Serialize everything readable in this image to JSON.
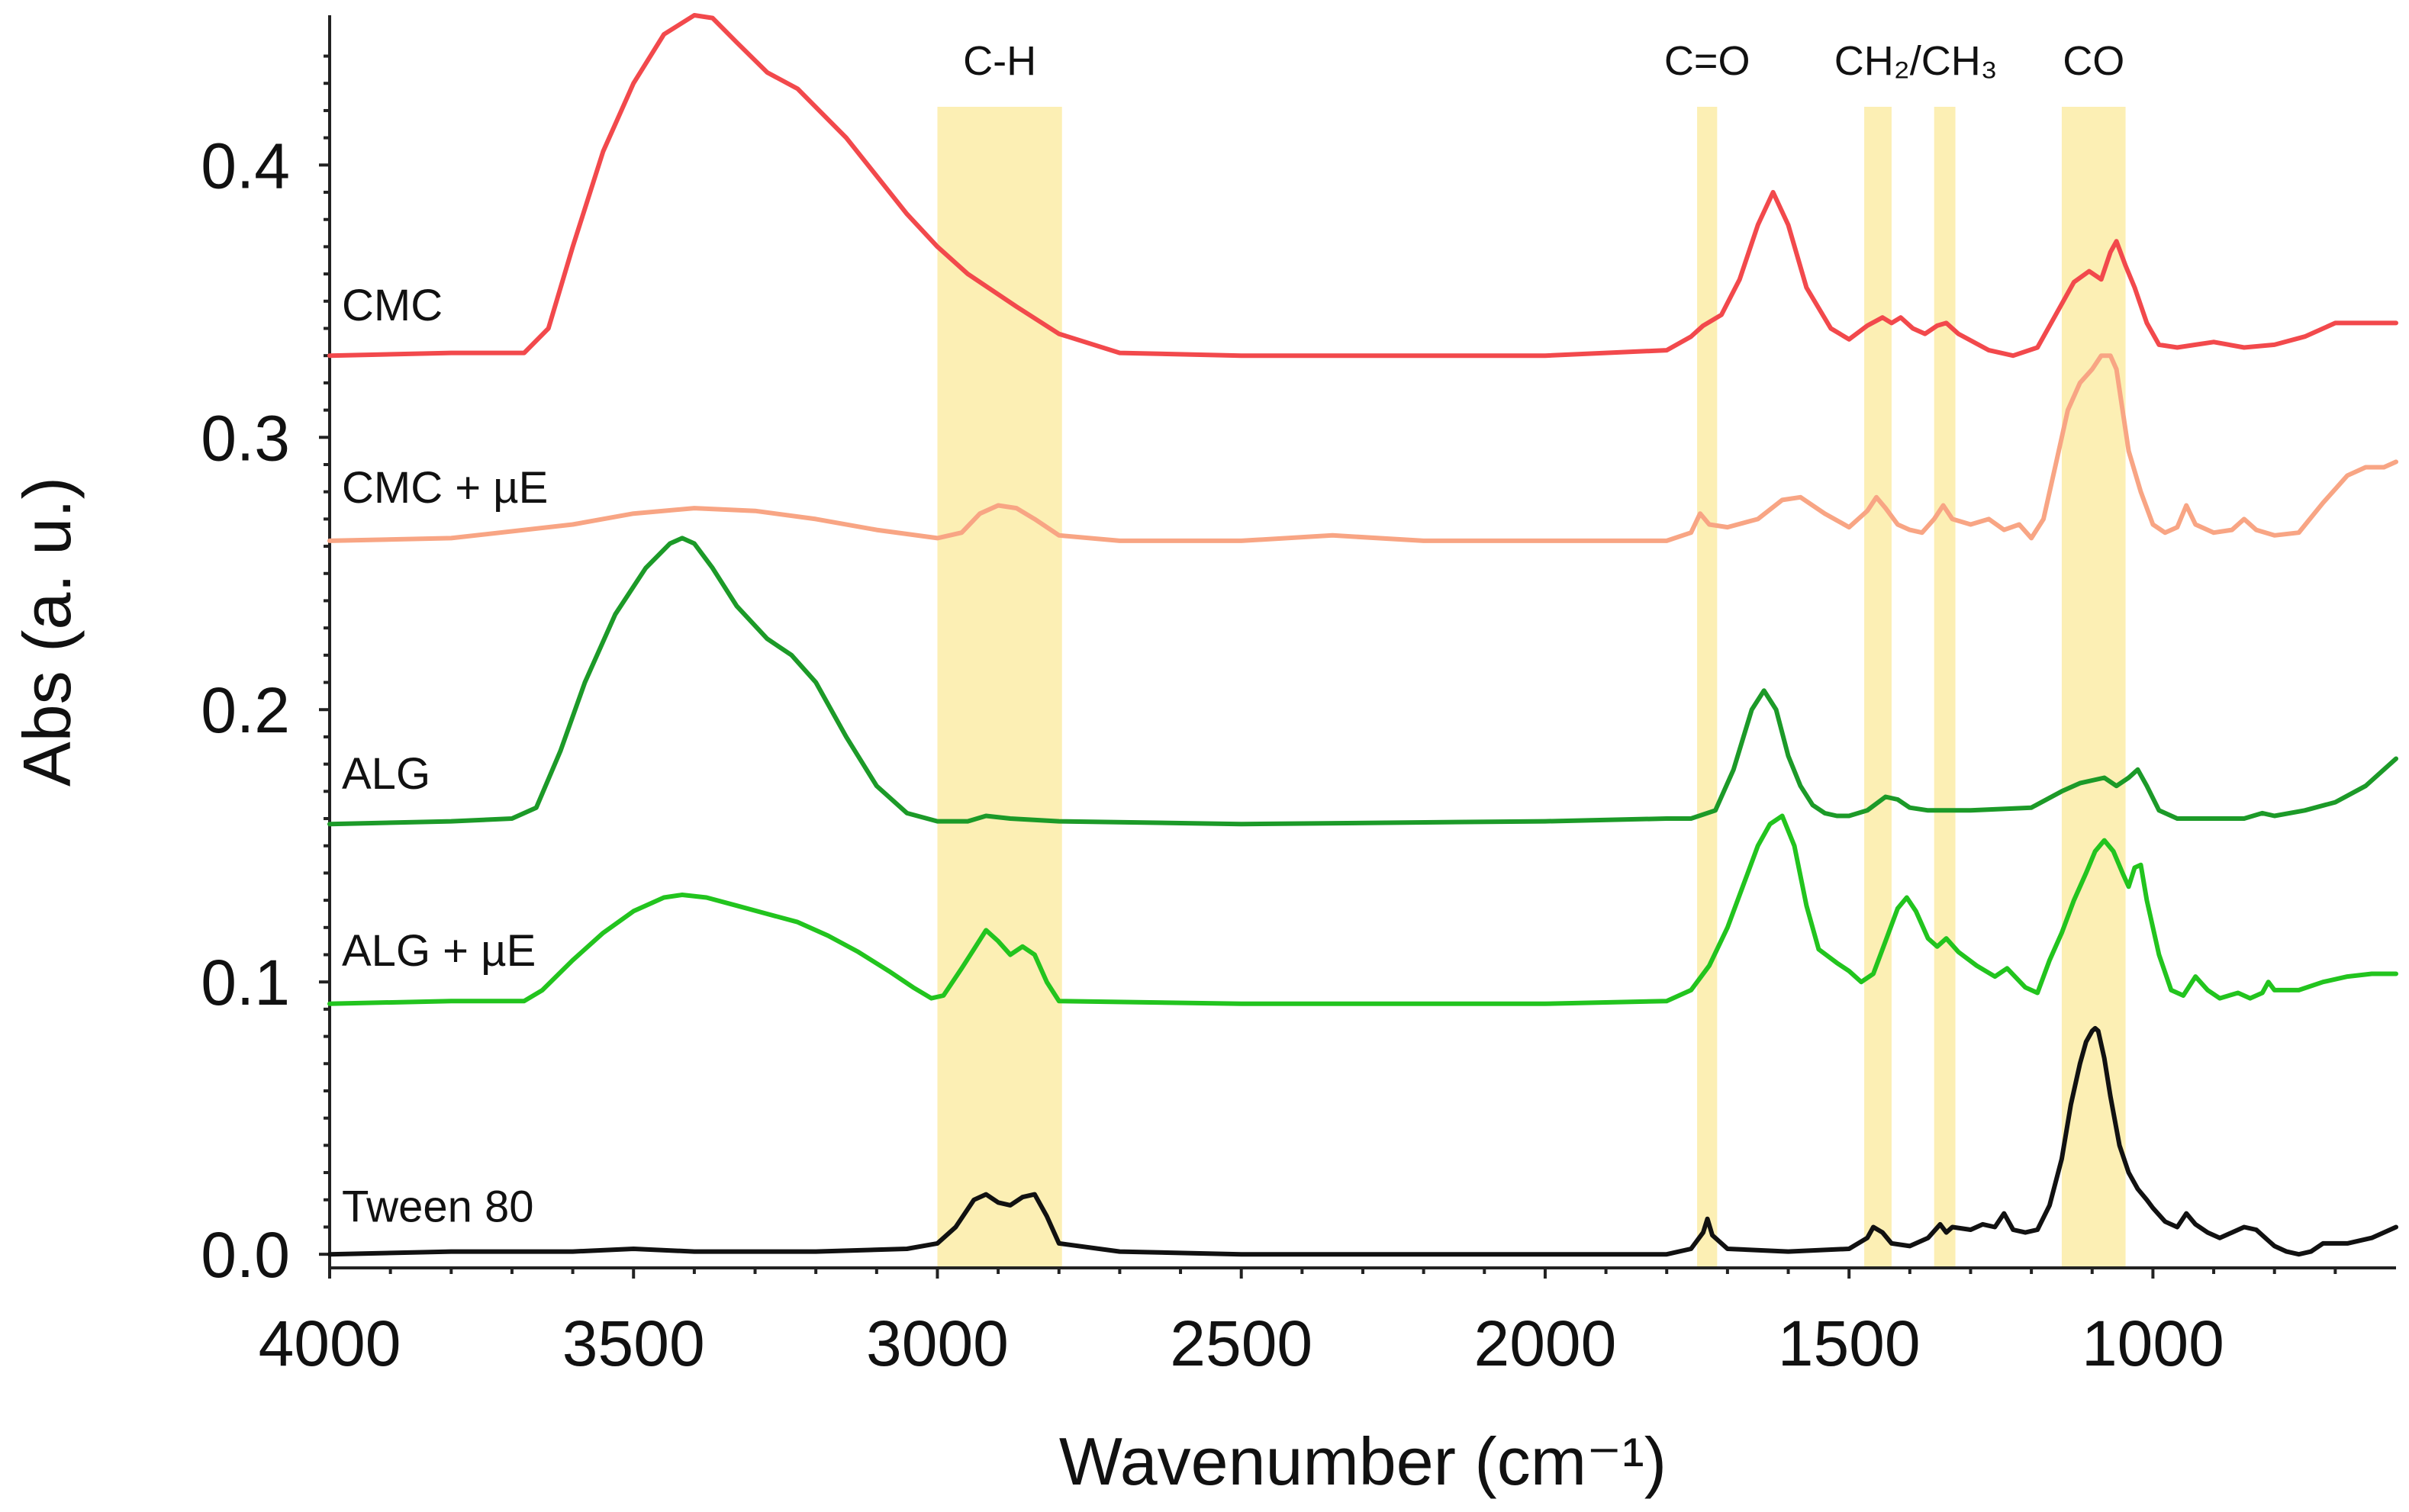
{
  "chart_data": {
    "type": "line",
    "title": "",
    "xlabel": "Wavenumber (cm⁻¹)",
    "ylabel": "Abs (a. u.)",
    "xlim": [
      4000,
      600
    ],
    "ylim": [
      -0.005,
      0.455
    ],
    "x_reversed": true,
    "grid": false,
    "x_ticks": [
      {
        "value": 4000,
        "label": "4000"
      },
      {
        "value": 3500,
        "label": "3500"
      },
      {
        "value": 3000,
        "label": "3000"
      },
      {
        "value": 2500,
        "label": "2500"
      },
      {
        "value": 2000,
        "label": "2000"
      },
      {
        "value": 1500,
        "label": "1500"
      },
      {
        "value": 1000,
        "label": "1000"
      }
    ],
    "y_ticks": [
      {
        "value": 0.0,
        "label": "0.0"
      },
      {
        "value": 0.1,
        "label": "0.1"
      },
      {
        "value": 0.2,
        "label": "0.2"
      },
      {
        "value": 0.3,
        "label": "0.3"
      },
      {
        "value": 0.4,
        "label": "0.4"
      }
    ],
    "bands": [
      {
        "name": "C-H",
        "from": 3000,
        "to": 2795,
        "label": "C-H"
      },
      {
        "name": "C=O",
        "from": 1750,
        "to": 1717,
        "label": "C=O"
      },
      {
        "name": "CH2/CH3",
        "from": 1475,
        "to": 1430,
        "label": "CH₂/CH₃"
      },
      {
        "name": "CH2/CH3-b",
        "from": 1360,
        "to": 1325,
        "label": ""
      },
      {
        "name": "CO",
        "from": 1150,
        "to": 1045,
        "label": "CO"
      }
    ],
    "band_color": "#fcefb4",
    "series": [
      {
        "name": "CMC",
        "label": "CMC",
        "color": "#f2494c",
        "x": [
          4000,
          3800,
          3680,
          3640,
          3600,
          3550,
          3500,
          3450,
          3400,
          3370,
          3330,
          3280,
          3230,
          3150,
          3050,
          3000,
          2950,
          2870,
          2800,
          2700,
          2500,
          2300,
          2000,
          1800,
          1760,
          1740,
          1710,
          1680,
          1650,
          1625,
          1600,
          1570,
          1530,
          1500,
          1470,
          1445,
          1430,
          1415,
          1395,
          1375,
          1355,
          1340,
          1320,
          1270,
          1230,
          1190,
          1160,
          1130,
          1105,
          1085,
          1070,
          1060,
          1045,
          1030,
          1010,
          990,
          960,
          930,
          900,
          850,
          800,
          750,
          700,
          650,
          600
        ],
        "y": [
          0.33,
          0.331,
          0.331,
          0.34,
          0.37,
          0.405,
          0.43,
          0.448,
          0.455,
          0.454,
          0.445,
          0.434,
          0.428,
          0.41,
          0.382,
          0.37,
          0.36,
          0.348,
          0.338,
          0.331,
          0.33,
          0.33,
          0.33,
          0.332,
          0.337,
          0.341,
          0.345,
          0.358,
          0.378,
          0.39,
          0.378,
          0.355,
          0.34,
          0.336,
          0.341,
          0.344,
          0.342,
          0.344,
          0.34,
          0.338,
          0.341,
          0.342,
          0.338,
          0.332,
          0.33,
          0.333,
          0.345,
          0.357,
          0.361,
          0.358,
          0.368,
          0.372,
          0.363,
          0.355,
          0.342,
          0.334,
          0.333,
          0.334,
          0.335,
          0.333,
          0.334,
          0.337,
          0.342,
          0.342,
          0.342
        ]
      },
      {
        "name": "CMC + µE",
        "label": "CMC + µE",
        "color": "#f8a584",
        "x": [
          4000,
          3800,
          3600,
          3500,
          3400,
          3300,
          3200,
          3100,
          3000,
          2960,
          2930,
          2900,
          2870,
          2840,
          2800,
          2700,
          2500,
          2350,
          2200,
          2000,
          1800,
          1760,
          1745,
          1730,
          1700,
          1650,
          1610,
          1580,
          1540,
          1500,
          1470,
          1455,
          1440,
          1420,
          1400,
          1380,
          1360,
          1345,
          1330,
          1300,
          1270,
          1245,
          1220,
          1200,
          1180,
          1160,
          1140,
          1120,
          1100,
          1085,
          1070,
          1060,
          1050,
          1040,
          1020,
          1000,
          980,
          960,
          945,
          930,
          900,
          870,
          850,
          830,
          800,
          760,
          720,
          680,
          650,
          620,
          600
        ],
        "y": [
          0.262,
          0.263,
          0.268,
          0.272,
          0.274,
          0.273,
          0.27,
          0.266,
          0.263,
          0.265,
          0.272,
          0.275,
          0.274,
          0.27,
          0.264,
          0.262,
          0.262,
          0.264,
          0.262,
          0.262,
          0.262,
          0.265,
          0.272,
          0.268,
          0.267,
          0.27,
          0.277,
          0.278,
          0.272,
          0.267,
          0.273,
          0.278,
          0.274,
          0.268,
          0.266,
          0.265,
          0.27,
          0.275,
          0.27,
          0.268,
          0.27,
          0.266,
          0.268,
          0.263,
          0.27,
          0.29,
          0.31,
          0.32,
          0.325,
          0.33,
          0.33,
          0.325,
          0.31,
          0.295,
          0.28,
          0.268,
          0.265,
          0.267,
          0.275,
          0.268,
          0.265,
          0.266,
          0.27,
          0.266,
          0.264,
          0.265,
          0.276,
          0.286,
          0.289,
          0.289,
          0.291
        ]
      },
      {
        "name": "ALG",
        "label": "ALG",
        "color": "#1c9a28",
        "x": [
          4000,
          3800,
          3700,
          3660,
          3620,
          3580,
          3530,
          3480,
          3440,
          3420,
          3400,
          3370,
          3330,
          3280,
          3240,
          3200,
          3150,
          3100,
          3050,
          3000,
          2950,
          2920,
          2880,
          2800,
          2500,
          2000,
          1800,
          1760,
          1720,
          1690,
          1660,
          1640,
          1620,
          1600,
          1580,
          1560,
          1540,
          1520,
          1500,
          1470,
          1440,
          1420,
          1400,
          1370,
          1300,
          1200,
          1150,
          1120,
          1100,
          1080,
          1060,
          1040,
          1025,
          1010,
          990,
          960,
          900,
          850,
          820,
          800,
          750,
          700,
          650,
          600
        ],
        "y": [
          0.158,
          0.159,
          0.16,
          0.164,
          0.185,
          0.21,
          0.235,
          0.252,
          0.261,
          0.263,
          0.261,
          0.252,
          0.238,
          0.226,
          0.22,
          0.21,
          0.19,
          0.172,
          0.162,
          0.159,
          0.159,
          0.161,
          0.16,
          0.159,
          0.158,
          0.159,
          0.16,
          0.16,
          0.163,
          0.178,
          0.2,
          0.207,
          0.2,
          0.183,
          0.172,
          0.165,
          0.162,
          0.161,
          0.161,
          0.163,
          0.168,
          0.167,
          0.164,
          0.163,
          0.163,
          0.164,
          0.17,
          0.173,
          0.174,
          0.175,
          0.172,
          0.175,
          0.178,
          0.172,
          0.163,
          0.16,
          0.16,
          0.16,
          0.162,
          0.161,
          0.163,
          0.166,
          0.172,
          0.182
        ]
      },
      {
        "name": "ALG + µE",
        "label": "ALG + µE",
        "color": "#22c41e",
        "x": [
          4000,
          3800,
          3680,
          3650,
          3600,
          3550,
          3500,
          3450,
          3420,
          3380,
          3330,
          3280,
          3230,
          3180,
          3130,
          3080,
          3040,
          3010,
          2990,
          2960,
          2940,
          2920,
          2900,
          2880,
          2860,
          2840,
          2820,
          2800,
          2500,
          2000,
          1800,
          1760,
          1730,
          1700,
          1670,
          1650,
          1630,
          1610,
          1590,
          1570,
          1550,
          1520,
          1500,
          1480,
          1460,
          1440,
          1420,
          1405,
          1390,
          1370,
          1355,
          1340,
          1320,
          1290,
          1260,
          1240,
          1210,
          1190,
          1170,
          1150,
          1130,
          1110,
          1095,
          1080,
          1065,
          1050,
          1040,
          1030,
          1020,
          1010,
          990,
          970,
          950,
          930,
          910,
          890,
          860,
          840,
          820,
          810,
          800,
          760,
          720,
          680,
          640,
          600
        ],
        "y": [
          0.092,
          0.093,
          0.093,
          0.097,
          0.108,
          0.118,
          0.126,
          0.131,
          0.132,
          0.131,
          0.128,
          0.125,
          0.122,
          0.117,
          0.111,
          0.104,
          0.098,
          0.094,
          0.095,
          0.105,
          0.112,
          0.119,
          0.115,
          0.11,
          0.113,
          0.11,
          0.1,
          0.093,
          0.092,
          0.092,
          0.093,
          0.097,
          0.106,
          0.12,
          0.138,
          0.15,
          0.158,
          0.161,
          0.15,
          0.128,
          0.112,
          0.107,
          0.104,
          0.1,
          0.103,
          0.115,
          0.127,
          0.131,
          0.126,
          0.116,
          0.113,
          0.116,
          0.111,
          0.106,
          0.102,
          0.105,
          0.098,
          0.096,
          0.108,
          0.118,
          0.13,
          0.14,
          0.148,
          0.152,
          0.148,
          0.14,
          0.135,
          0.142,
          0.143,
          0.13,
          0.11,
          0.097,
          0.095,
          0.102,
          0.097,
          0.094,
          0.096,
          0.094,
          0.096,
          0.1,
          0.097,
          0.097,
          0.1,
          0.102,
          0.103,
          0.103
        ]
      },
      {
        "name": "Tween 80",
        "label": "Tween 80",
        "color": "#111111",
        "x": [
          4000,
          3800,
          3600,
          3500,
          3400,
          3200,
          3050,
          3000,
          2970,
          2940,
          2920,
          2900,
          2880,
          2860,
          2840,
          2820,
          2800,
          2700,
          2500,
          2300,
          2000,
          1800,
          1760,
          1740,
          1733,
          1725,
          1700,
          1600,
          1500,
          1470,
          1460,
          1445,
          1430,
          1400,
          1370,
          1350,
          1340,
          1330,
          1300,
          1280,
          1260,
          1245,
          1230,
          1210,
          1190,
          1170,
          1150,
          1135,
          1120,
          1110,
          1100,
          1095,
          1090,
          1080,
          1070,
          1055,
          1040,
          1025,
          1010,
          1000,
          980,
          960,
          945,
          930,
          910,
          890,
          870,
          850,
          830,
          810,
          800,
          780,
          760,
          740,
          720,
          700,
          680,
          660,
          640,
          620,
          600
        ],
        "y": [
          0.0,
          0.001,
          0.001,
          0.002,
          0.001,
          0.001,
          0.002,
          0.004,
          0.01,
          0.02,
          0.022,
          0.019,
          0.018,
          0.021,
          0.022,
          0.014,
          0.004,
          0.001,
          0.0,
          0.0,
          0.0,
          0.0,
          0.002,
          0.008,
          0.013,
          0.007,
          0.002,
          0.001,
          0.002,
          0.006,
          0.01,
          0.008,
          0.004,
          0.003,
          0.006,
          0.011,
          0.008,
          0.01,
          0.009,
          0.011,
          0.01,
          0.015,
          0.009,
          0.008,
          0.009,
          0.018,
          0.035,
          0.055,
          0.07,
          0.078,
          0.082,
          0.083,
          0.082,
          0.072,
          0.058,
          0.04,
          0.03,
          0.024,
          0.02,
          0.017,
          0.012,
          0.01,
          0.015,
          0.011,
          0.008,
          0.006,
          0.008,
          0.01,
          0.009,
          0.005,
          0.003,
          0.001,
          0.0,
          0.001,
          0.004,
          0.004,
          0.004,
          0.005,
          0.006,
          0.008,
          0.01
        ]
      }
    ]
  }
}
